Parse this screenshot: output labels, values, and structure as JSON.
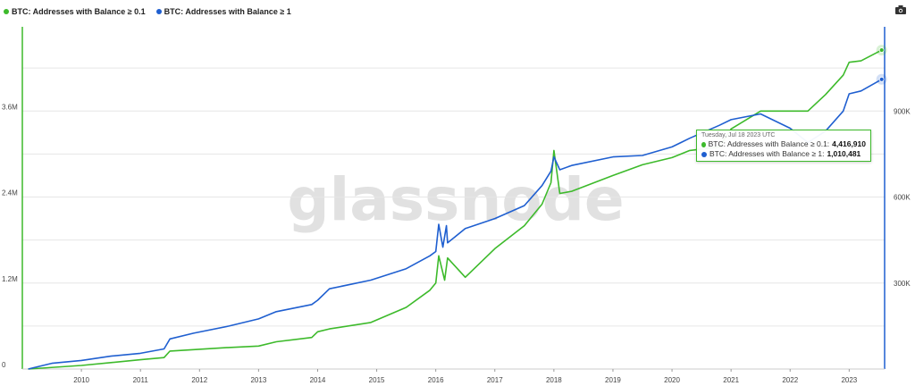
{
  "legend": [
    {
      "label": "BTC: Addresses with Balance ≥ 0.1",
      "color": "#3dba2b"
    },
    {
      "label": "BTC: Addresses with Balance ≥ 1",
      "color": "#1f5fd0"
    }
  ],
  "watermark": "glassnode",
  "tooltip": {
    "date": "Tuesday, Jul 18 2023 UTC",
    "rows": [
      {
        "label": "BTC: Addresses with Balance ≥ 0.1:",
        "value": "4,416,910",
        "color": "#3dba2b"
      },
      {
        "label": "BTC: Addresses with Balance ≥ 1:",
        "value": "1,010,481",
        "color": "#1f5fd0"
      }
    ]
  },
  "chart_data": {
    "type": "line",
    "x_ticks": [
      "2010",
      "2011",
      "2012",
      "2013",
      "2014",
      "2015",
      "2016",
      "2017",
      "2018",
      "2019",
      "2020",
      "2021",
      "2022",
      "2023"
    ],
    "xlim": [
      2009.0,
      2023.6
    ],
    "y_left": {
      "ticks": [
        "0",
        "1.2M",
        "2.4M",
        "3.6M"
      ],
      "tick_values": [
        0,
        1200000,
        2400000,
        3600000
      ],
      "ylim": [
        0,
        4800000
      ]
    },
    "y_right": {
      "ticks": [
        "300K",
        "600K",
        "900K"
      ],
      "tick_values": [
        300000,
        600000,
        900000
      ],
      "ylim": [
        0,
        1200000
      ]
    },
    "series": [
      {
        "name": "BTC: Addresses with Balance ≥ 0.1",
        "axis": "left",
        "color": "#3dba2b",
        "x": [
          2009.1,
          2010.0,
          2010.5,
          2011.0,
          2011.4,
          2011.5,
          2011.9,
          2012.5,
          2013.0,
          2013.3,
          2013.9,
          2014.0,
          2014.2,
          2014.9,
          2015.5,
          2015.9,
          2016.0,
          2016.05,
          2016.15,
          2016.2,
          2016.5,
          2017.0,
          2017.5,
          2017.8,
          2017.95,
          2018.0,
          2018.1,
          2018.3,
          2019.0,
          2019.5,
          2020.0,
          2020.3,
          2020.8,
          2021.0,
          2021.5,
          2022.0,
          2022.3,
          2022.6,
          2022.9,
          2023.0,
          2023.2,
          2023.55
        ],
        "y": [
          0,
          50000,
          90000,
          130000,
          160000,
          250000,
          270000,
          300000,
          320000,
          380000,
          440000,
          520000,
          560000,
          650000,
          860000,
          1100000,
          1200000,
          1580000,
          1240000,
          1550000,
          1280000,
          1680000,
          2000000,
          2300000,
          2600000,
          3050000,
          2450000,
          2480000,
          2700000,
          2850000,
          2950000,
          3050000,
          3100000,
          3350000,
          3600000,
          3600000,
          3600000,
          3830000,
          4100000,
          4280000,
          4300000,
          4450000
        ]
      },
      {
        "name": "BTC: Addresses with Balance ≥ 1",
        "axis": "right",
        "color": "#1f5fd0",
        "x": [
          2009.1,
          2009.5,
          2010.0,
          2010.5,
          2011.0,
          2011.4,
          2011.5,
          2011.9,
          2012.5,
          2013.0,
          2013.3,
          2013.9,
          2014.0,
          2014.2,
          2014.9,
          2015.5,
          2015.9,
          2016.0,
          2016.05,
          2016.12,
          2016.18,
          2016.2,
          2016.5,
          2017.0,
          2017.5,
          2017.8,
          2017.95,
          2018.0,
          2018.1,
          2018.3,
          2019.0,
          2019.5,
          2020.0,
          2020.3,
          2020.8,
          2021.0,
          2021.5,
          2022.0,
          2022.3,
          2022.6,
          2022.9,
          2023.0,
          2023.2,
          2023.55
        ],
        "y": [
          0,
          20000,
          30000,
          45000,
          55000,
          70000,
          105000,
          125000,
          150000,
          175000,
          200000,
          225000,
          240000,
          280000,
          310000,
          350000,
          395000,
          410000,
          505000,
          425000,
          500000,
          440000,
          490000,
          525000,
          570000,
          640000,
          690000,
          740000,
          695000,
          710000,
          740000,
          745000,
          775000,
          805000,
          850000,
          870000,
          890000,
          840000,
          790000,
          830000,
          900000,
          960000,
          970000,
          1010481
        ]
      }
    ]
  }
}
